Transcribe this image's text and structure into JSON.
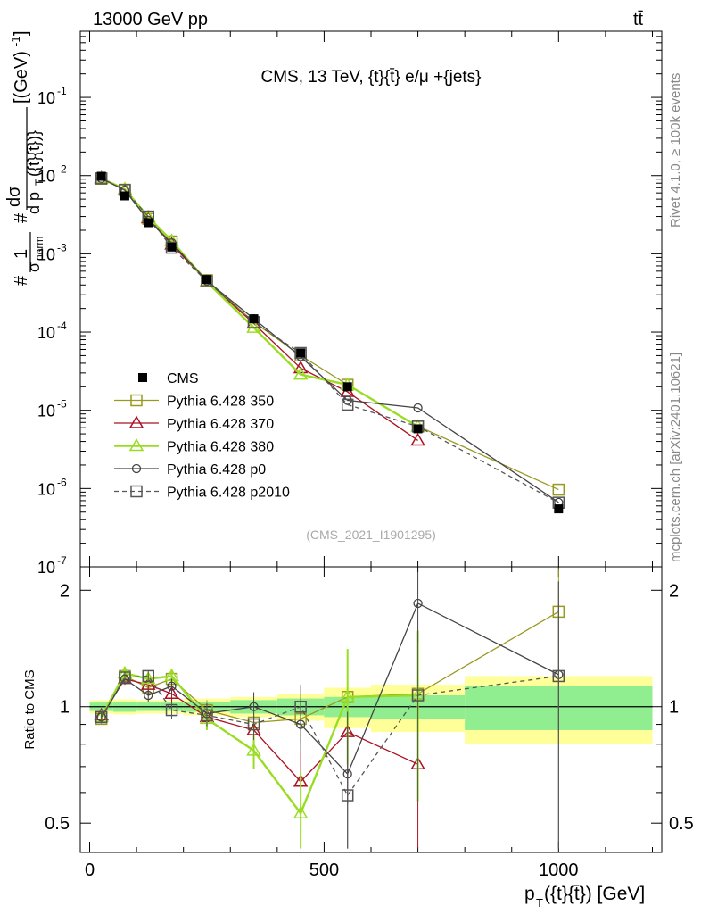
{
  "header": {
    "left": "13000 GeV pp",
    "right": "tt̄"
  },
  "side_texts": {
    "rivet": "Rivet 4.1.0, ≥ 100k events",
    "mcplots": "mcplots.cern.ch [arXiv:2401.10621]"
  },
  "chart_data": {
    "type": "line",
    "title": "CMS, 13 TeV, {t}{t̄} e/μ +{jets}",
    "analysis_id": "(CMS_2021_I1901295)",
    "xlabel": "p_T({t}{t̄}) [GeV]",
    "ylabel_main": "# 1/σ_norm # dσ / d p_T({t}{t̄}) [(GeV)^-1]",
    "ylabel_ratio": "Ratio to CMS",
    "xlim": [
      -20,
      1220
    ],
    "ylim_main": [
      1e-07,
      0.7
    ],
    "ylim_ratio": [
      0.42,
      2.3
    ],
    "x_ticks": [
      0,
      500,
      1000
    ],
    "y_ticks_main": [
      "10^{-7}",
      "10^{-6}",
      "10^{-5}",
      "10^{-4}",
      "10^{-3}",
      "10^{-2}",
      "10^{-1}"
    ],
    "y_ticks_ratio": [
      "0.5",
      "1",
      "2"
    ],
    "bins": [
      [
        0,
        50
      ],
      [
        50,
        100
      ],
      [
        100,
        150
      ],
      [
        150,
        200
      ],
      [
        200,
        300
      ],
      [
        300,
        400
      ],
      [
        400,
        500
      ],
      [
        500,
        600
      ],
      [
        600,
        800
      ],
      [
        800,
        1200
      ]
    ],
    "x": [
      25,
      75,
      125,
      175,
      250,
      350,
      450,
      550,
      700,
      1000
    ],
    "data": {
      "name": "CMS",
      "values": [
        0.0098,
        0.0055,
        0.0025,
        0.00122,
        0.00047,
        0.000148,
        5.4e-05,
        2e-05,
        5.8e-06,
        5.5e-07
      ],
      "band_inner": [
        0.025,
        0.03,
        0.025,
        0.025,
        0.03,
        0.04,
        0.05,
        0.06,
        0.07,
        0.13
      ],
      "band_outer": [
        0.04,
        0.045,
        0.04,
        0.04,
        0.05,
        0.06,
        0.08,
        0.12,
        0.14,
        0.2
      ]
    },
    "series": [
      {
        "name": "Pythia 6.428 350",
        "color": "#999922",
        "marker": "square-open",
        "dash": false,
        "thick": false,
        "ratio": [
          0.93,
          1.2,
          1.12,
          1.18,
          0.98,
          0.91,
          0.93,
          1.06,
          1.08,
          1.76
        ],
        "ratio_err": [
          0.03,
          0.04,
          0.04,
          0.05,
          0.06,
          0.08,
          0.12,
          0.3,
          0.5,
          0.9
        ]
      },
      {
        "name": "Pythia 6.428 370",
        "color": "#aa1122",
        "marker": "triangle-open",
        "dash": false,
        "thick": false,
        "ratio": [
          0.95,
          1.18,
          1.14,
          1.08,
          0.94,
          0.87,
          0.64,
          0.86,
          0.71,
          null
        ],
        "ratio_err": [
          0.03,
          0.04,
          0.04,
          0.05,
          0.06,
          0.08,
          0.12,
          0.3,
          0.5,
          0
        ]
      },
      {
        "name": "Pythia 6.428 380",
        "color": "#99dd22",
        "marker": "triangle-open",
        "dash": false,
        "thick": true,
        "ratio": [
          0.94,
          1.22,
          1.18,
          1.2,
          0.93,
          0.77,
          0.53,
          1.06,
          1.07,
          null
        ],
        "ratio_err": [
          0.03,
          0.04,
          0.04,
          0.05,
          0.06,
          0.08,
          0.15,
          0.35,
          0.5,
          0
        ]
      },
      {
        "name": "Pythia 6.428 p0",
        "color": "#444444",
        "marker": "circle-open",
        "dash": false,
        "thick": false,
        "ratio": [
          0.94,
          1.18,
          1.07,
          1.13,
          0.96,
          1.0,
          0.9,
          0.67,
          1.85,
          1.21
        ],
        "ratio_err": [
          0.03,
          0.04,
          0.04,
          0.05,
          0.06,
          0.09,
          0.14,
          0.3,
          0.38,
          0.9
        ]
      },
      {
        "name": "Pythia 6.428 p2010",
        "color": "#555555",
        "marker": "square-open",
        "dash": true,
        "thick": false,
        "ratio": [
          0.94,
          1.19,
          1.2,
          0.98,
          0.95,
          0.9,
          1.0,
          0.59,
          1.07,
          1.2
        ],
        "ratio_err": [
          0.03,
          0.04,
          0.04,
          0.05,
          0.06,
          0.08,
          0.14,
          0.3,
          0.5,
          0.9
        ]
      }
    ]
  },
  "colors": {
    "band_inner": "#90ee90",
    "band_outer": "#ffff99",
    "data": "#000000"
  }
}
